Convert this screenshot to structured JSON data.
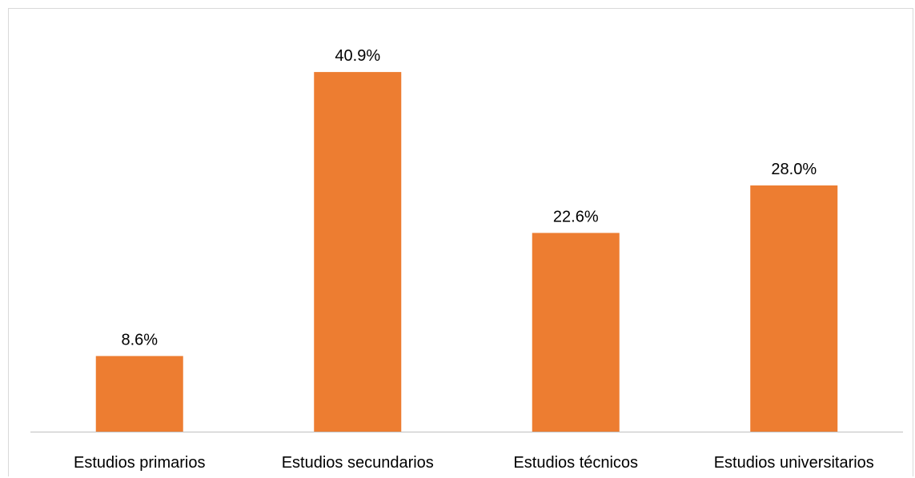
{
  "chart_data": {
    "type": "bar",
    "categories": [
      "Estudios primarios",
      "Estudios secundarios",
      "Estudios técnicos",
      "Estudios universitarios"
    ],
    "values": [
      8.6,
      40.9,
      22.6,
      28.0
    ],
    "value_labels": [
      "8.6%",
      "40.9%",
      "22.6%",
      "28.0%"
    ],
    "title": "",
    "xlabel": "",
    "ylabel": "",
    "ylim": [
      0,
      45
    ],
    "grid": false,
    "legend": "none",
    "bar_color": "#ED7D31",
    "axis_color": "#BFBFBF",
    "border_color": "#D9D9D9"
  }
}
